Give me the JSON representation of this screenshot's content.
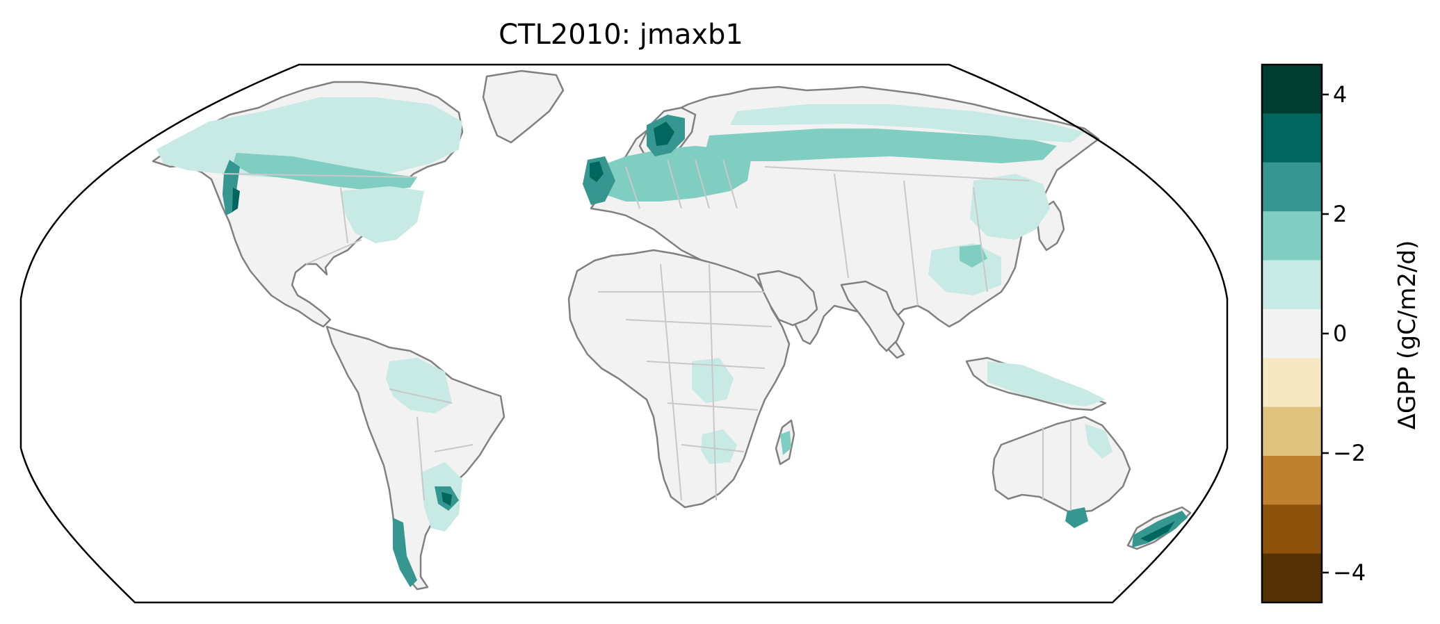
{
  "figure": {
    "title": "CTL2010: jmaxb1"
  },
  "colorbar": {
    "label": "ΔGPP (gC/m2/d)",
    "vmin": -4.5,
    "vmax": 4.5,
    "ticks": [
      {
        "value": 4,
        "label": "4"
      },
      {
        "value": 2,
        "label": "2"
      },
      {
        "value": 0,
        "label": "0"
      },
      {
        "value": -2,
        "label": "−2"
      },
      {
        "value": -4,
        "label": "−4"
      }
    ],
    "bins": [
      {
        "from": 3.5,
        "to": 4.5,
        "color": "#003c30"
      },
      {
        "from": 2.5,
        "to": 3.5,
        "color": "#01665e"
      },
      {
        "from": 1.5,
        "to": 2.5,
        "color": "#35978f"
      },
      {
        "from": 0.5,
        "to": 1.5,
        "color": "#80cdc1"
      },
      {
        "from": -0.5,
        "to": 0.5,
        "color": "#c7eae5"
      },
      {
        "from": -0.5,
        "to": 0.5,
        "color": "#f2f2f2"
      },
      {
        "from": -1.5,
        "to": -0.5,
        "color": "#f6e8c3"
      },
      {
        "from": -2.5,
        "to": -1.5,
        "color": "#dfc27d"
      },
      {
        "from": -3.5,
        "to": -2.5,
        "color": "#bf812d"
      },
      {
        "from": -4.5,
        "to": -3.5,
        "color": "#8c510a"
      },
      {
        "from": -5.5,
        "to": -4.5,
        "color": "#543005"
      }
    ]
  },
  "map": {
    "projection": "Robinson",
    "coastline_color": "#808080",
    "border_color": "#c8c8c8",
    "land_color": "#f2f2f2"
  }
}
